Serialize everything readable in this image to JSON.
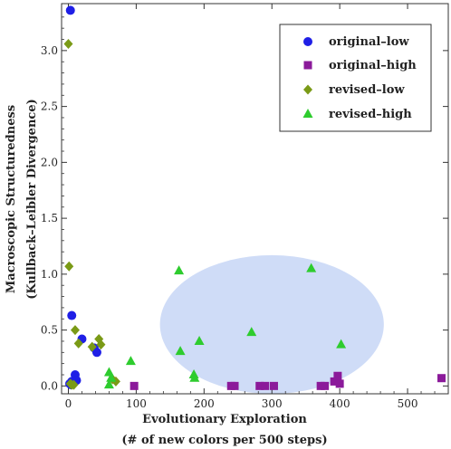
{
  "chart_data": {
    "type": "scatter",
    "xlabel": "Evolutionary Exploration",
    "xlabel_sub": "(# of new colors per 500 steps)",
    "ylabel": "Macroscopic Structuredness",
    "ylabel_sub": "(Kullback–Leibler Divergence)",
    "xlim": [
      -10,
      560
    ],
    "ylim": [
      -0.07,
      3.42
    ],
    "xticks": [
      0,
      100,
      200,
      300,
      400,
      500
    ],
    "xtick_labels": [
      "0",
      "100",
      "200",
      "300",
      "400",
      "500"
    ],
    "yticks": [
      0.0,
      0.5,
      1.0,
      1.5,
      2.0,
      2.5,
      3.0
    ],
    "ytick_labels": [
      "0.0",
      "0.5",
      "1.0",
      "1.5",
      "2.0",
      "2.5",
      "3.0"
    ],
    "legend_position": "top-right",
    "highlight_ellipse": {
      "cx": 300,
      "cy": 0.55,
      "rx": 165,
      "ry": 0.62,
      "color": "#cfdcf7"
    },
    "series": [
      {
        "name": "original–low",
        "marker": "circle",
        "color": "#1f1fe6",
        "points": [
          [
            3,
            3.36
          ],
          [
            5,
            0.63
          ],
          [
            20,
            0.42
          ],
          [
            38,
            0.34
          ],
          [
            42,
            0.3
          ],
          [
            10,
            0.1
          ],
          [
            12,
            0.05
          ],
          [
            5,
            0.04
          ],
          [
            2,
            0.02
          ],
          [
            4,
            0.01
          ]
        ]
      },
      {
        "name": "original–high",
        "marker": "square",
        "color": "#8b1a9a",
        "points": [
          [
            97,
            0.0
          ],
          [
            240,
            0.0
          ],
          [
            245,
            0.0
          ],
          [
            282,
            0.0
          ],
          [
            290,
            0.0
          ],
          [
            303,
            0.0
          ],
          [
            372,
            0.0
          ],
          [
            378,
            0.0
          ],
          [
            392,
            0.04
          ],
          [
            397,
            0.09
          ],
          [
            400,
            0.02
          ],
          [
            550,
            0.07
          ]
        ]
      },
      {
        "name": "revised–low",
        "marker": "diamond",
        "color": "#7a9a16",
        "points": [
          [
            0,
            3.06
          ],
          [
            1,
            1.07
          ],
          [
            10,
            0.5
          ],
          [
            15,
            0.38
          ],
          [
            45,
            0.42
          ],
          [
            48,
            0.37
          ],
          [
            35,
            0.35
          ],
          [
            65,
            0.06
          ],
          [
            70,
            0.04
          ],
          [
            3,
            0.02
          ],
          [
            5,
            0.01
          ],
          [
            8,
            0.01
          ]
        ]
      },
      {
        "name": "revised–high",
        "marker": "triangle",
        "color": "#2ecc2e",
        "points": [
          [
            163,
            1.03
          ],
          [
            358,
            1.05
          ],
          [
            165,
            0.31
          ],
          [
            193,
            0.4
          ],
          [
            270,
            0.48
          ],
          [
            402,
            0.37
          ],
          [
            92,
            0.22
          ],
          [
            60,
            0.12
          ],
          [
            63,
            0.07
          ],
          [
            185,
            0.1
          ],
          [
            186,
            0.07
          ],
          [
            60,
            0.01
          ]
        ]
      }
    ]
  }
}
